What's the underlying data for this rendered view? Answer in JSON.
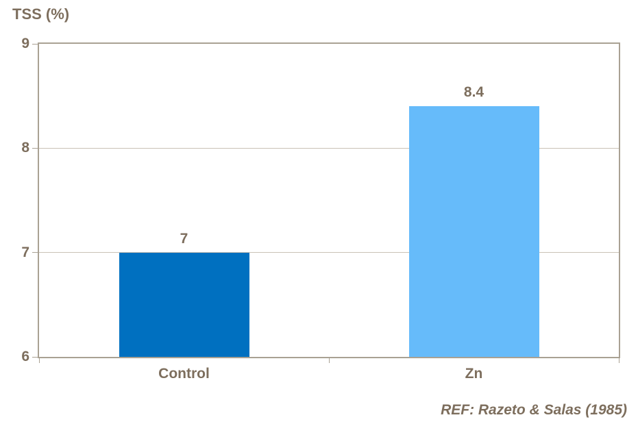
{
  "chart": {
    "title": "TSS (%)",
    "ref_note": "REF: Razeto & Salas (1985)"
  },
  "chart_data": {
    "type": "bar",
    "title": "TSS (%)",
    "categories": [
      "Control",
      "Zn"
    ],
    "values": [
      7,
      8.4
    ],
    "value_labels": [
      "7",
      "8.4"
    ],
    "bar_colors": [
      "#0070C0",
      "#66BBFA"
    ],
    "xlabel": "",
    "ylabel": "TSS (%)",
    "ylim": [
      6,
      9
    ],
    "yticks": [
      6,
      7,
      8,
      9
    ],
    "grid": "horizontal-interior-only",
    "legend": "none",
    "annotations": [
      "REF: Razeto & Salas (1985)"
    ],
    "colors": {
      "text": "#7D6E5D",
      "axis": "#A9A193",
      "gridline": "#C9C1B5",
      "background": "#FFFFFF"
    }
  }
}
